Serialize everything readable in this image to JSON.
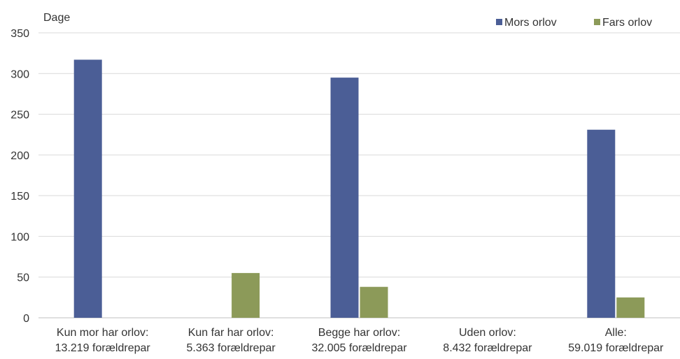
{
  "chart_data": {
    "type": "bar",
    "ylabel": "Dage",
    "ylim": [
      0,
      350
    ],
    "yticks": [
      0,
      50,
      100,
      150,
      200,
      250,
      300,
      350
    ],
    "grid": true,
    "legend_position": "top-right",
    "categories": [
      [
        "Kun mor har orlov:",
        "13.219 forældrepar"
      ],
      [
        "Kun far har orlov:",
        "5.363 forældrepar"
      ],
      [
        "Begge har orlov:",
        "32.005 forældrepar"
      ],
      [
        "Uden orlov:",
        "8.432 forældrepar"
      ],
      [
        "Alle:",
        "59.019 forældrepar"
      ]
    ],
    "series": [
      {
        "name": "Mors orlov",
        "color": "#4B5E96",
        "values": [
          317,
          0,
          295,
          0,
          231
        ]
      },
      {
        "name": "Fars orlov",
        "color": "#8C9A59",
        "values": [
          0,
          55,
          38,
          0,
          25
        ]
      }
    ]
  }
}
